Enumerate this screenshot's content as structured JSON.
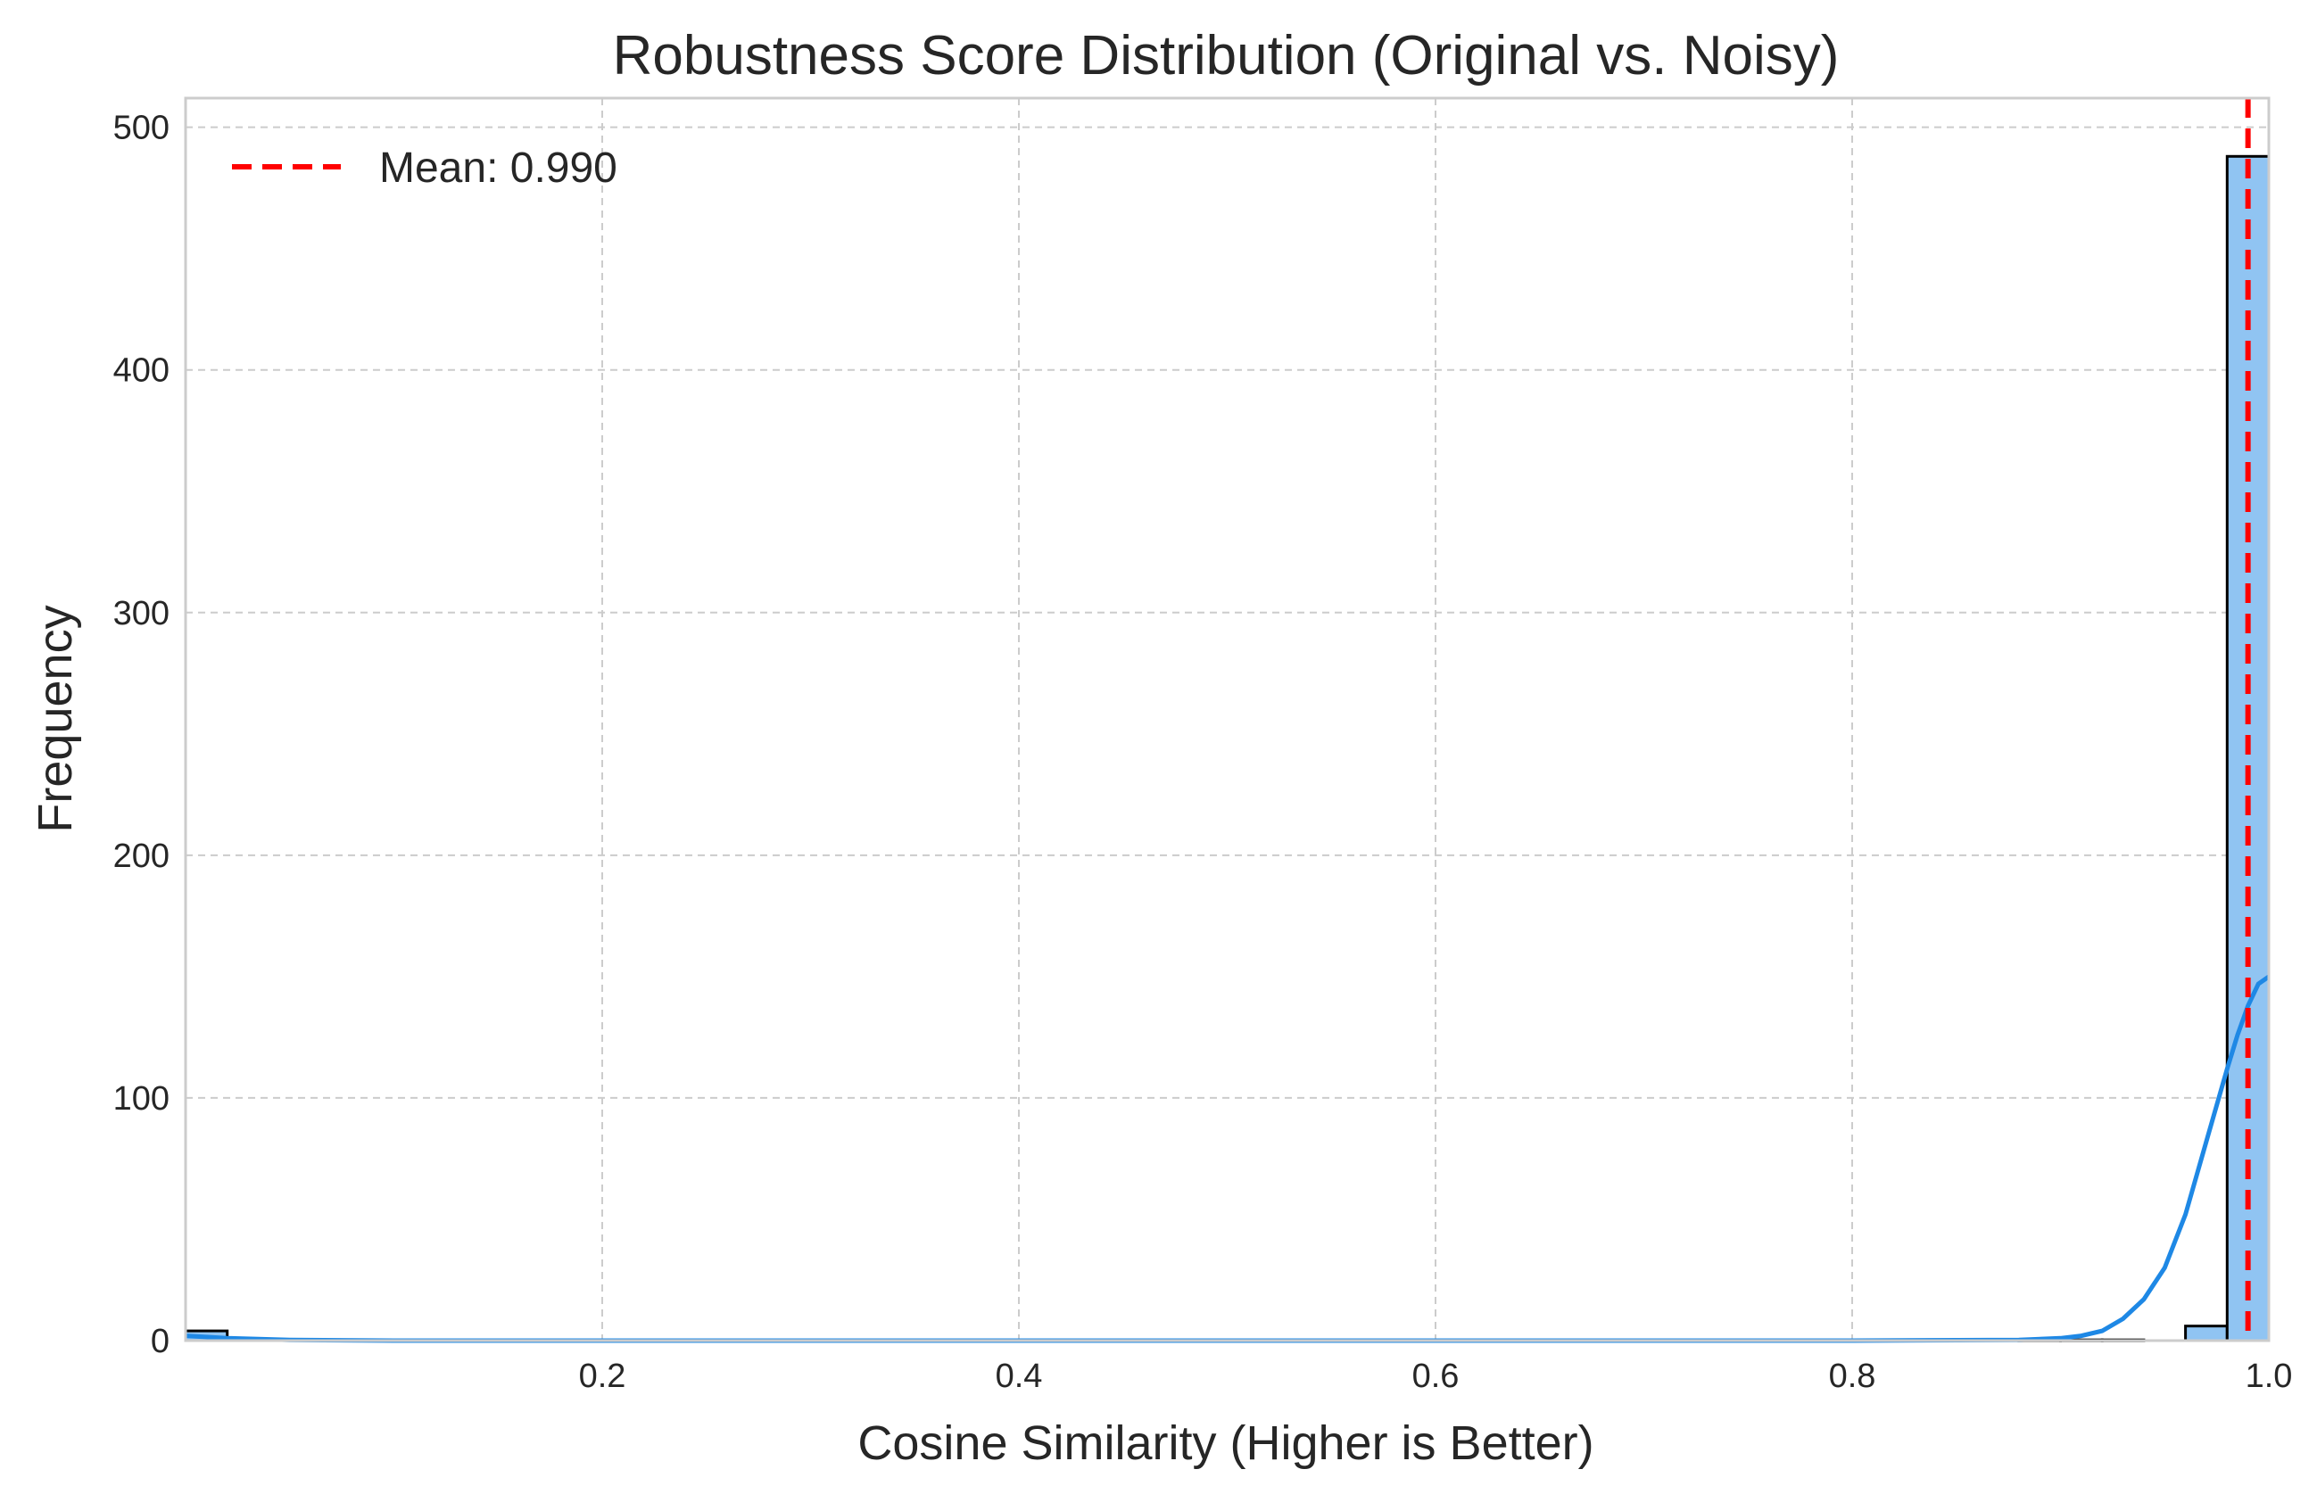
{
  "chart_data": {
    "type": "bar",
    "title": "Robustness Score Distribution (Original vs. Noisy)",
    "xlabel": "Cosine Similarity (Higher is Better)",
    "ylabel": "Frequency",
    "xlim": [
      0.0,
      1.0
    ],
    "ylim": [
      0,
      512
    ],
    "x_ticks": [
      0.2,
      0.4,
      0.6,
      0.8,
      1.0
    ],
    "x_tick_labels": [
      "0.2",
      "0.4",
      "0.6",
      "0.8",
      "1.0"
    ],
    "y_ticks": [
      0,
      100,
      200,
      300,
      400,
      500
    ],
    "y_tick_labels": [
      "0",
      "100",
      "200",
      "300",
      "400",
      "500"
    ],
    "grid": true,
    "bin_width": 0.02,
    "bars": [
      {
        "x0": 0.0,
        "x1": 0.02,
        "count": 4
      },
      {
        "x0": 0.88,
        "x1": 0.9,
        "count": 0.3
      },
      {
        "x0": 0.9,
        "x1": 0.92,
        "count": 0.3
      },
      {
        "x0": 0.92,
        "x1": 0.94,
        "count": 0.3
      },
      {
        "x0": 0.96,
        "x1": 0.98,
        "count": 6
      },
      {
        "x0": 0.98,
        "x1": 1.0,
        "count": 488
      }
    ],
    "bar_color": "#90c4f2",
    "kde": {
      "color": "#1e88e5",
      "x": [
        0.0,
        0.02,
        0.05,
        0.1,
        0.2,
        0.4,
        0.6,
        0.8,
        0.88,
        0.9,
        0.91,
        0.92,
        0.93,
        0.94,
        0.95,
        0.96,
        0.97,
        0.98,
        0.985,
        0.99,
        0.995,
        1.0
      ],
      "y": [
        2,
        1,
        0.3,
        0,
        0,
        0,
        0,
        0,
        0.3,
        1,
        2,
        4,
        9,
        17,
        30,
        52,
        82,
        112,
        126,
        138,
        147,
        150
      ]
    },
    "mean_line": {
      "x": 0.99,
      "color": "#ff0000",
      "label": "Mean: 0.990"
    },
    "legend": {
      "position": "top-left",
      "entries": [
        "Mean: 0.990"
      ]
    }
  }
}
